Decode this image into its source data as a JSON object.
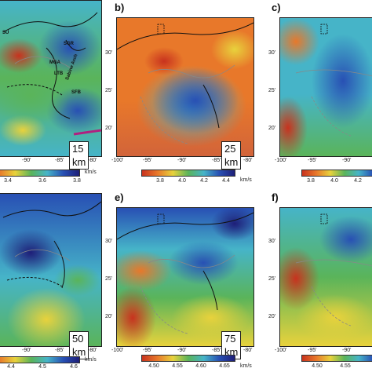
{
  "panels": [
    {
      "id": "a",
      "label": "",
      "depth": "15 km",
      "colorbar": {
        "ticks": [
          "3.4",
          "3.6",
          "3.8"
        ],
        "unit": "km/s"
      },
      "lon_ticks": [
        "-90'",
        "-85'",
        "-80'"
      ],
      "lat_ticks": [],
      "annotations": [
        "SU",
        "SGR",
        "MGA",
        "LTB",
        "Sabine Arch",
        "SFB"
      ]
    },
    {
      "id": "b",
      "label": "b)",
      "depth": "25 km",
      "colorbar": {
        "ticks": [
          "3.8",
          "4.0",
          "4.2",
          "4.4"
        ],
        "unit": "km/s"
      },
      "lon_ticks": [
        "-100'",
        "-95'",
        "-90'",
        "-85'",
        "-80'"
      ],
      "lat_ticks": [
        "30'",
        "25'",
        "20'"
      ]
    },
    {
      "id": "c",
      "label": "c)",
      "depth": "",
      "colorbar": {
        "ticks": [
          "3.8",
          "4.0",
          "4.2"
        ],
        "unit": ""
      },
      "lon_ticks": [
        "-100'",
        "-95'",
        "-90'"
      ],
      "lat_ticks": [
        "30'",
        "25'",
        "20'"
      ]
    },
    {
      "id": "d",
      "label": "",
      "depth": "50 km",
      "colorbar": {
        "ticks": [
          "4.4",
          "4.5",
          "4.6"
        ],
        "unit": "km/s"
      },
      "lon_ticks": [
        "-90'",
        "-85'",
        "-80'"
      ],
      "lat_ticks": []
    },
    {
      "id": "e",
      "label": "e)",
      "depth": "75 km",
      "colorbar": {
        "ticks": [
          "4.50",
          "4.55",
          "4.60",
          "4.65"
        ],
        "unit": "km/s"
      },
      "lon_ticks": [
        "-100'",
        "-95'",
        "-90'",
        "-85'",
        "-80'"
      ],
      "lat_ticks": [
        "30'",
        "25'",
        "20'"
      ]
    },
    {
      "id": "f",
      "label": "f)",
      "depth": "",
      "colorbar": {
        "ticks": [
          "4.50",
          "4.55"
        ],
        "unit": ""
      },
      "lon_ticks": [
        "-100'",
        "-95'",
        "-90'"
      ],
      "lat_ticks": [
        "30'",
        "25'",
        "20'"
      ]
    }
  ],
  "colors": {
    "slow": "#c8321e",
    "orange": "#e8782a",
    "yellow": "#e8d23c",
    "green": "#5ab45a",
    "cyan": "#46b4c8",
    "blue": "#2850b4",
    "fast": "#1e1e78"
  }
}
